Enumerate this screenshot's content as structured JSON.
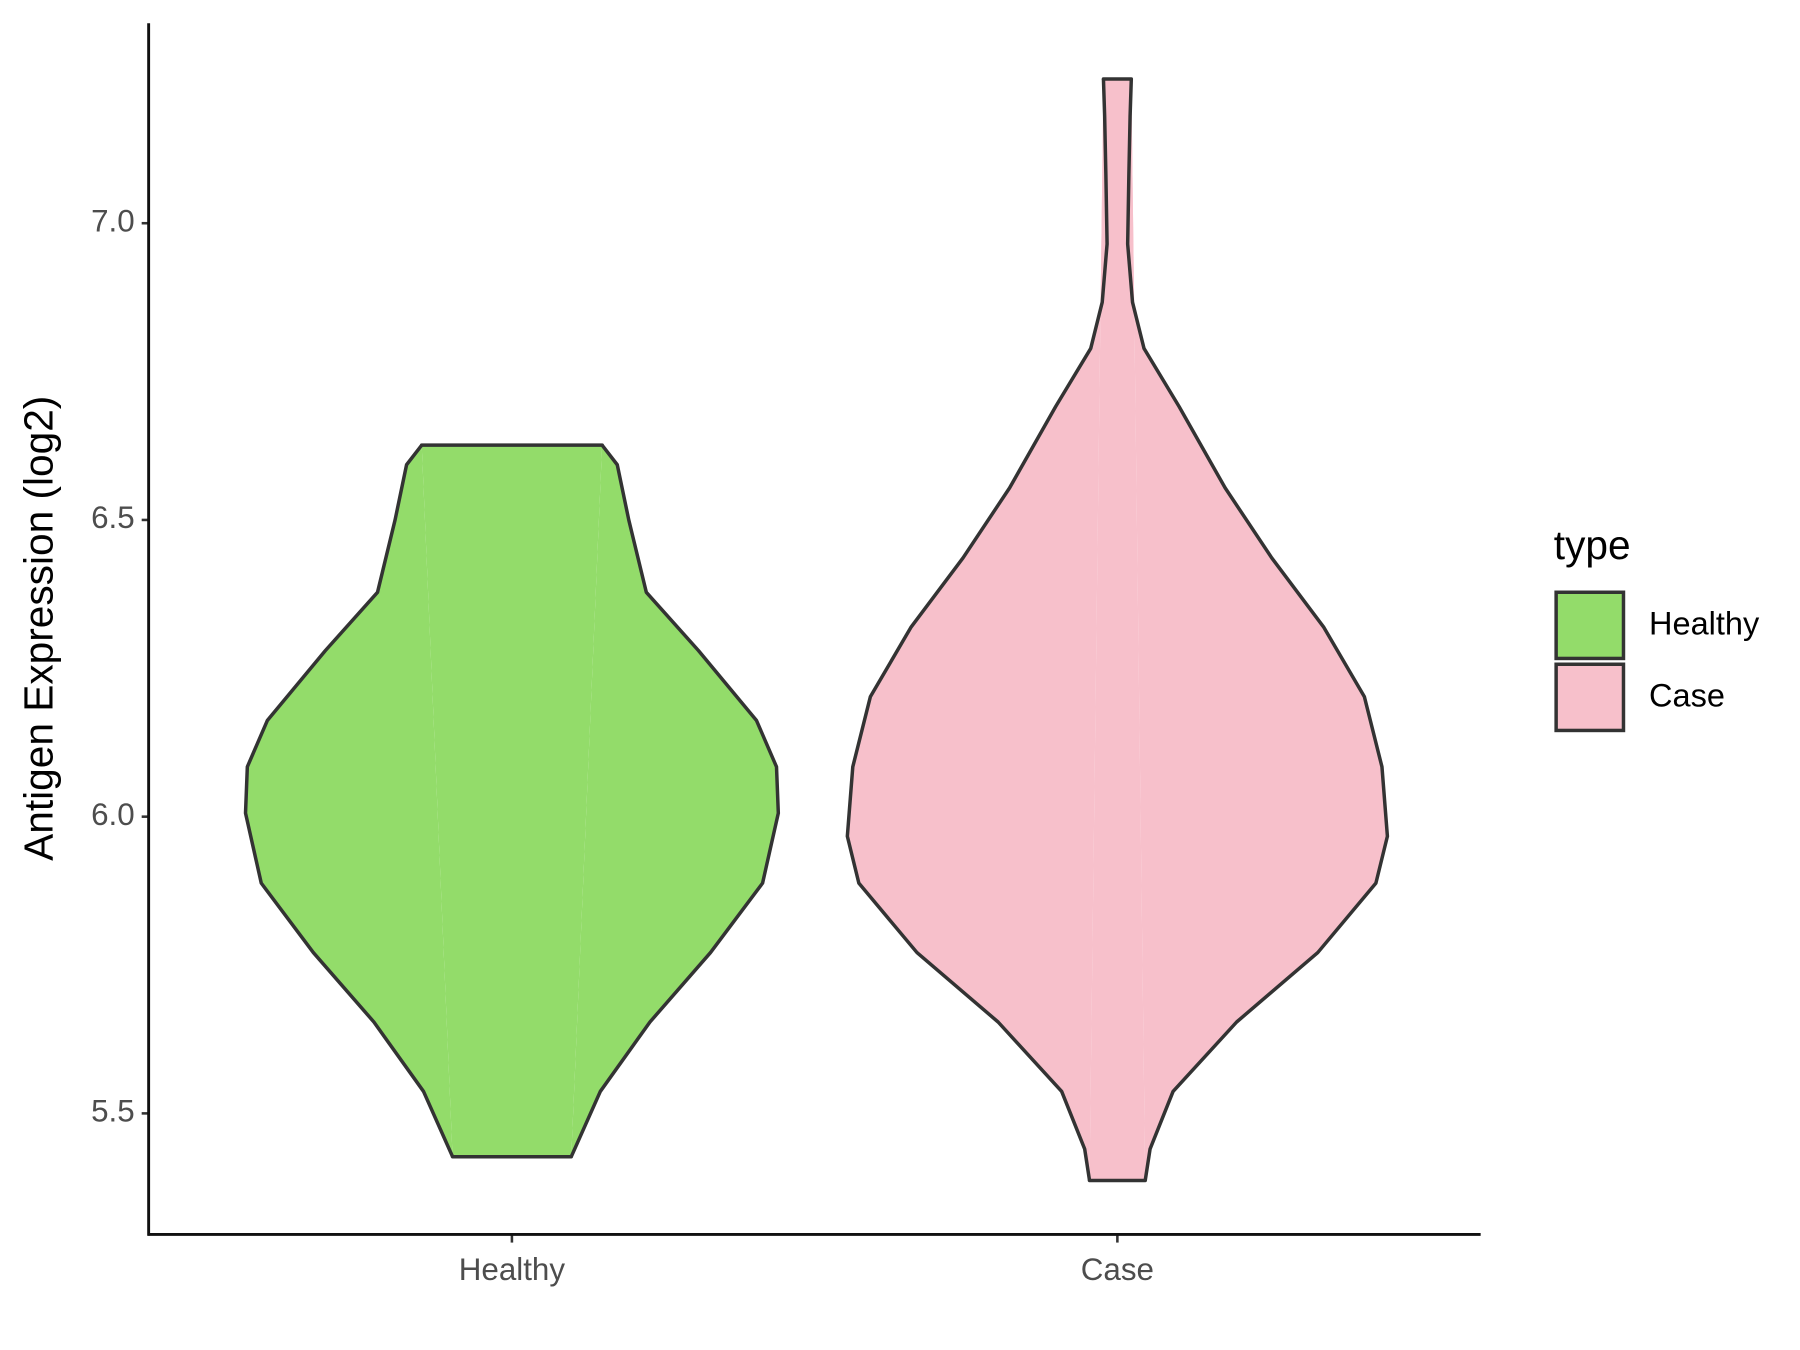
{
  "chart_data": {
    "type": "violin",
    "y_label": "Antigen Expression (log2)",
    "categories": [
      "Healthy",
      "Case"
    ],
    "legend_title": "type",
    "legend_position": "right",
    "ylim": [
      5.296,
      7.337
    ],
    "yticks": [
      {
        "value": 5.5,
        "label": "5.5"
      },
      {
        "value": 6.0,
        "label": "6.0"
      },
      {
        "value": 6.5,
        "label": "6.5"
      },
      {
        "value": 7.0,
        "label": "7.0"
      }
    ],
    "grid": false,
    "series": [
      {
        "name": "Healthy",
        "color": "#93dc6a",
        "y": [
          5.427,
          5.537,
          5.654,
          5.771,
          5.888,
          6.006,
          6.084,
          6.162,
          6.28,
          6.378,
          6.5,
          6.593,
          6.626
        ],
        "widths": [
          0.098,
          0.146,
          0.228,
          0.328,
          0.414,
          0.44,
          0.437,
          0.404,
          0.308,
          0.222,
          0.193,
          0.174,
          0.149
        ]
      },
      {
        "name": "Case",
        "color": "#f7c0cb",
        "y": [
          5.387,
          5.44,
          5.537,
          5.654,
          5.771,
          5.888,
          5.967,
          6.084,
          6.202,
          6.319,
          6.436,
          6.554,
          6.691,
          6.789,
          6.867,
          6.965,
          7.082,
          7.18,
          7.243
        ],
        "widths": [
          0.046,
          0.054,
          0.092,
          0.197,
          0.331,
          0.427,
          0.446,
          0.437,
          0.408,
          0.341,
          0.255,
          0.178,
          0.102,
          0.044,
          0.025,
          0.017,
          0.019,
          0.021,
          0.023
        ]
      }
    ]
  }
}
